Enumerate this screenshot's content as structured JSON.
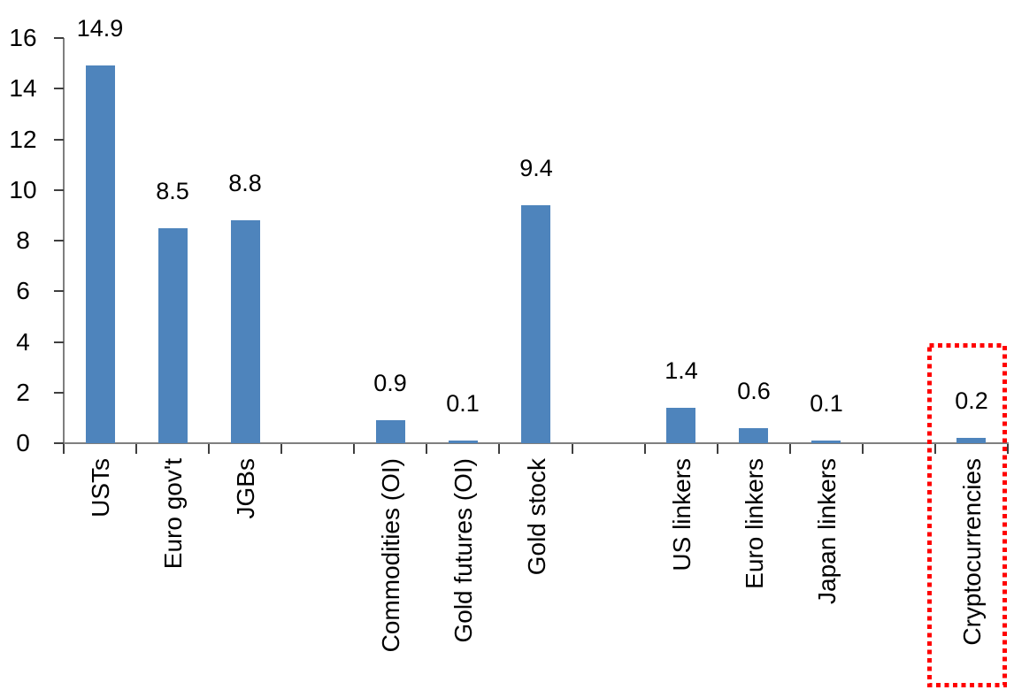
{
  "chart_data": {
    "type": "bar",
    "title": "",
    "xlabel": "",
    "ylabel": "",
    "categories": [
      "USTs",
      "Euro gov't",
      "JGBs",
      "Commodities (OI)",
      "Gold futures (OI)",
      "Gold stock",
      "US linkers",
      "Euro linkers",
      "Japan linkers",
      "Cryptocurrencies"
    ],
    "values": [
      14.9,
      8.5,
      8.8,
      0.9,
      0.1,
      9.4,
      1.4,
      0.6,
      0.1,
      0.2
    ],
    "value_labels": [
      "14.9",
      "8.5",
      "8.8",
      "0.9",
      "0.1",
      "9.4",
      "1.4",
      "0.6",
      "0.1",
      "0.2"
    ],
    "y_ticks": [
      0,
      2,
      4,
      6,
      8,
      10,
      12,
      14,
      16
    ],
    "ylim": [
      0,
      16
    ],
    "bar_color": "#4e84bc",
    "grid": false,
    "legend": false,
    "x_label_rotation_degrees": 90,
    "group_gaps_after": [
      "JGBs",
      "Gold stock",
      "Japan linkers"
    ],
    "slot_indices": [
      0,
      1,
      2,
      4,
      5,
      6,
      8,
      9,
      10,
      12
    ],
    "total_slots": 13,
    "highlight": {
      "category": "Cryptocurrencies",
      "style": "dotted-box",
      "color": "#ff0000"
    }
  }
}
